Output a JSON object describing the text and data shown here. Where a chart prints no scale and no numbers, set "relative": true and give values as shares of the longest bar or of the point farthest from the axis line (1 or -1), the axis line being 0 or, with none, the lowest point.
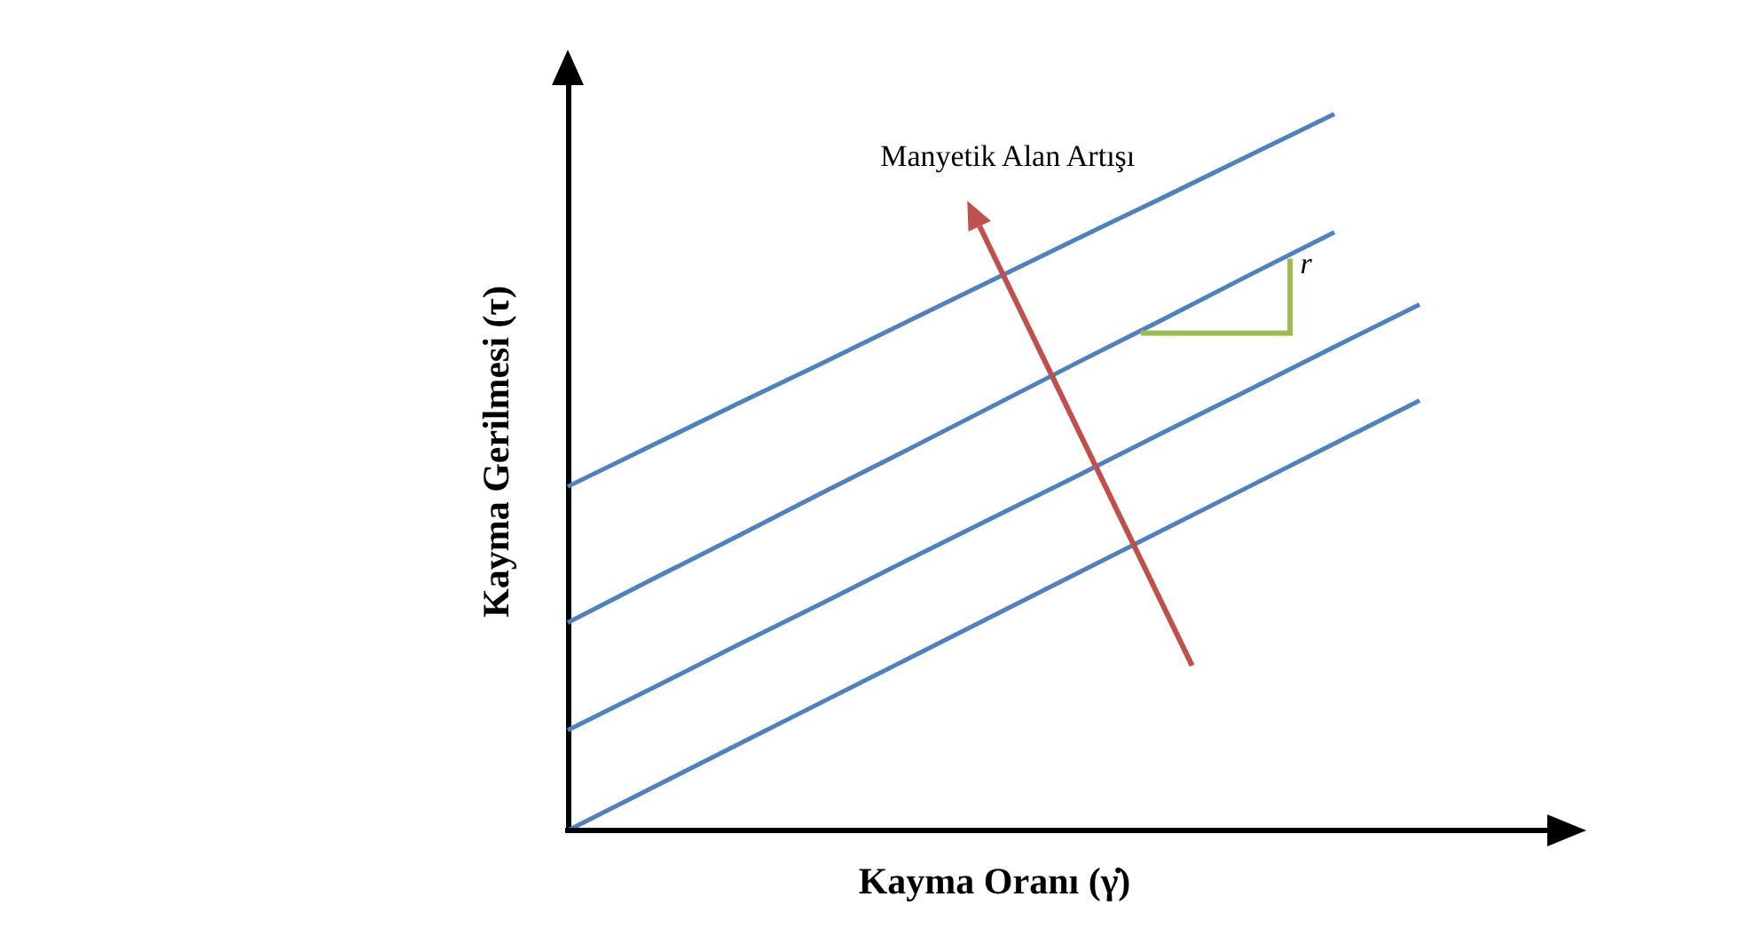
{
  "chart_data": {
    "type": "line",
    "relative": true,
    "xlabel": "Kayma Oranı (γ̇)",
    "ylabel": "Kayma Gerilmesi  (τ)",
    "tick_labels": false,
    "grid": false,
    "legend": false,
    "marker": "none",
    "line_style": "solid",
    "annotations": [
      "Manyetik Alan Artışı",
      "r"
    ],
    "categories": [
      null,
      null,
      null,
      null,
      null,
      null,
      null,
      null,
      null,
      null,
      null
    ],
    "series": [
      {
        "color": "#4f81bd",
        "values": [
          0.48,
          0.538,
          0.596,
          0.653,
          0.711,
          0.769,
          0.827,
          0.884,
          0.942,
          1,
          null
        ]
      },
      {
        "color": "#4f81bd",
        "values": [
          0.29,
          0.351,
          0.411,
          0.472,
          0.532,
          0.593,
          0.654,
          0.714,
          0.775,
          0.835,
          null
        ]
      },
      {
        "color": "#4f81bd",
        "values": [
          0.14,
          0.199,
          0.259,
          0.318,
          0.378,
          0.437,
          0.496,
          0.556,
          0.615,
          0.675,
          0.734
        ]
      },
      {
        "color": "#4f81bd",
        "values": [
          0,
          0.06,
          0.12,
          0.18,
          0.24,
          0.3,
          0.36,
          0.42,
          0.48,
          0.54,
          0.6
        ]
      }
    ]
  }
}
